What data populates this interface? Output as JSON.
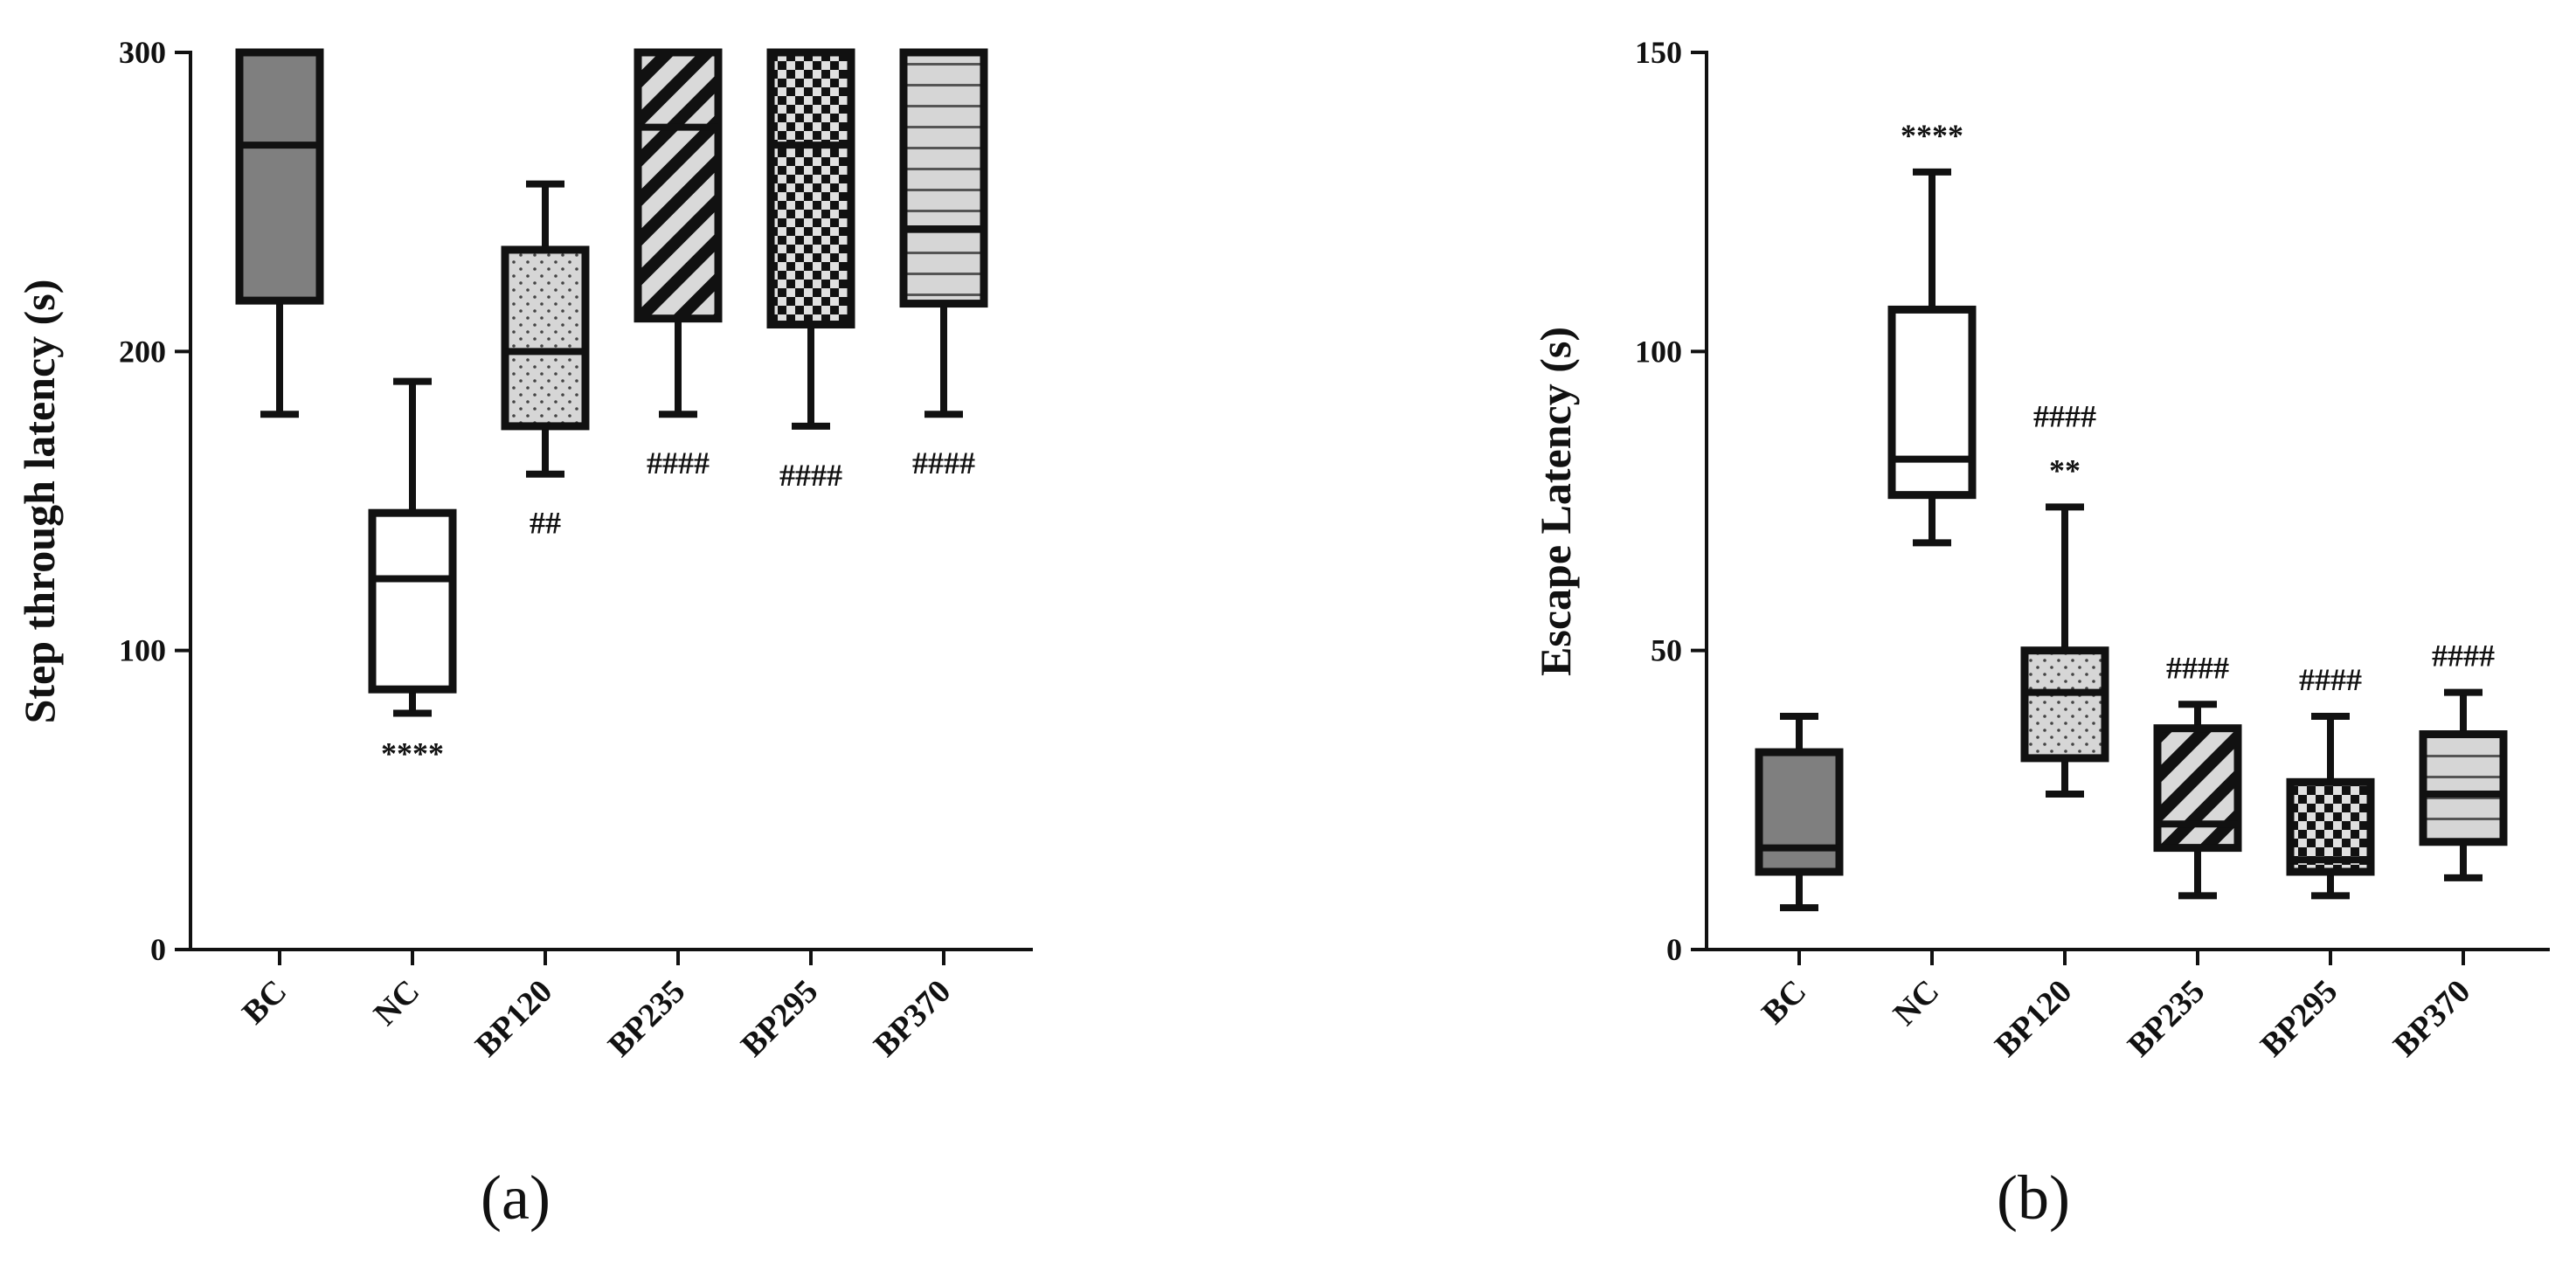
{
  "chart_data": [
    {
      "type": "box",
      "panel_label": "(a)",
      "ylabel": "Step through latency (s)",
      "xlabel": "",
      "ylim": [
        0,
        300
      ],
      "yticks": [
        0,
        100,
        200,
        300
      ],
      "categories": [
        "BC",
        "NC",
        "BP120",
        "BP235",
        "BP295",
        "BP370"
      ],
      "boxes": [
        {
          "category": "BC",
          "min": 179,
          "q1": 217,
          "median": 269,
          "q3": 300,
          "max": 300,
          "pattern": "solid-gray",
          "annotation": ""
        },
        {
          "category": "NC",
          "min": 79,
          "q1": 87,
          "median": 124,
          "q3": 146,
          "max": 190,
          "pattern": "white",
          "annotation": "****"
        },
        {
          "category": "BP120",
          "min": 159,
          "q1": 175,
          "median": 200,
          "q3": 234,
          "max": 256,
          "pattern": "dots",
          "annotation": "##"
        },
        {
          "category": "BP235",
          "min": 179,
          "q1": 211,
          "median": 275,
          "q3": 300,
          "max": 300,
          "pattern": "diagonal",
          "annotation": "####"
        },
        {
          "category": "BP295",
          "min": 175,
          "q1": 209,
          "median": 269,
          "q3": 300,
          "max": 300,
          "pattern": "checker",
          "annotation": "####"
        },
        {
          "category": "BP370",
          "min": 179,
          "q1": 216,
          "median": 241,
          "q3": 300,
          "max": 300,
          "pattern": "horizontal",
          "annotation": "####"
        }
      ]
    },
    {
      "type": "box",
      "panel_label": "(b)",
      "ylabel": "Escape Latency (s)",
      "xlabel": "",
      "ylim": [
        0,
        150
      ],
      "yticks": [
        0,
        50,
        100,
        150
      ],
      "categories": [
        "BC",
        "NC",
        "BP120",
        "BP235",
        "BP295",
        "BP370"
      ],
      "boxes": [
        {
          "category": "BC",
          "min": 7,
          "q1": 13,
          "median": 17,
          "q3": 33,
          "max": 39,
          "pattern": "solid-gray",
          "annotation": ""
        },
        {
          "category": "NC",
          "min": 68,
          "q1": 76,
          "median": 82,
          "q3": 107,
          "max": 130,
          "pattern": "white",
          "annotation": "****"
        },
        {
          "category": "BP120",
          "min": 26,
          "q1": 32,
          "median": 43,
          "q3": 50,
          "max": 74,
          "pattern": "dots",
          "annotation": "####\n**"
        },
        {
          "category": "BP235",
          "min": 9,
          "q1": 17,
          "median": 21,
          "q3": 37,
          "max": 41,
          "pattern": "diagonal",
          "annotation": "####"
        },
        {
          "category": "BP295",
          "min": 9,
          "q1": 13,
          "median": 15,
          "q3": 28,
          "max": 39,
          "pattern": "checker",
          "annotation": "####"
        },
        {
          "category": "BP370",
          "min": 12,
          "q1": 18,
          "median": 26,
          "q3": 36,
          "max": 43,
          "pattern": "horizontal",
          "annotation": "####"
        }
      ]
    }
  ]
}
